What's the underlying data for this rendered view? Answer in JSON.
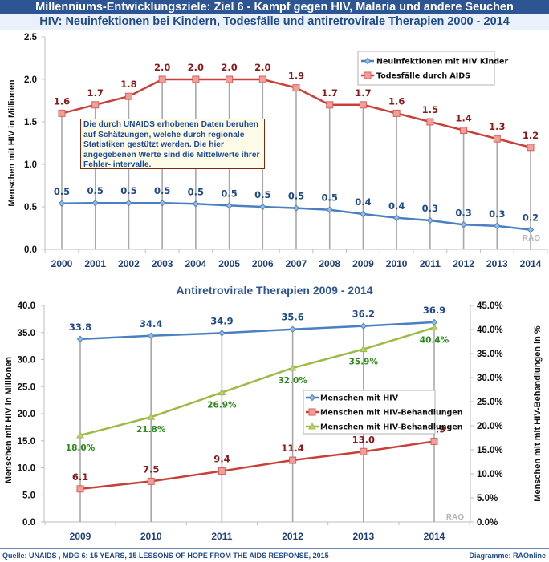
{
  "header": {
    "title": "Millenniums-Entwicklungsziele: Ziel 6 -  Kampf gegen HIV, Malaria und andere Seuchen",
    "subtitle": "HIV: Neuinfektionen bei Kindern, Todesfälle und antiretrovirale Therapien 2000 - 2014"
  },
  "note": "Die durch UNAIDS erhobenen Daten beruhen auf Schätzungen, welche durch regionale Statistiken gestützt werden. Die hier angegebenen Werte sind die Mittelwerte ihrer Fehler- intervalle.",
  "footer": {
    "source": "Quelle: UNAIDS , MDG 6: 15 YEARS, 15 LESSONS OF HOPE FROM THE AIDS RESPONSE, 2015",
    "credit": "Diagramme: RAOnline"
  },
  "colors": {
    "blue": "#4a7fc1",
    "red": "#c9403a",
    "green": "#9bbb45",
    "header_bg": "#2e5593"
  },
  "chart_data": [
    {
      "type": "line",
      "title": "",
      "xlabel": "",
      "ylabel": "Menschen mit HIV in Millionen",
      "ylim": [
        0,
        2.5
      ],
      "yticks": [
        "0.0",
        "0.5",
        "1.0",
        "1.5",
        "2.0",
        "2.5"
      ],
      "grid": "vertical drop lines",
      "legend": "top-right",
      "watermark": "RAO",
      "categories": [
        "2000",
        "2001",
        "2002",
        "2003",
        "2004",
        "2005",
        "2006",
        "2007",
        "2008",
        "2009",
        "2010",
        "2011",
        "2012",
        "2013",
        "2014"
      ],
      "series": [
        {
          "name": "Neuinfektionen mit HIV Kinder",
          "color": "#4a7fc1",
          "values": [
            0.54,
            0.545,
            0.545,
            0.545,
            0.535,
            0.515,
            0.5,
            0.485,
            0.465,
            0.415,
            0.37,
            0.34,
            0.29,
            0.275,
            0.23
          ],
          "labels": [
            "0.5",
            "0.5",
            "0.5",
            "0.5",
            "0.5",
            "0.5",
            "0.5",
            "0.5",
            "0.5",
            "0.4",
            "0.4",
            "0.3",
            "0.3",
            "0.3",
            "0.2"
          ]
        },
        {
          "name": "Todesfälle durch AIDS",
          "color": "#c9403a",
          "values": [
            1.6,
            1.7,
            1.8,
            2.0,
            2.0,
            2.0,
            2.0,
            1.9,
            1.7,
            1.7,
            1.6,
            1.5,
            1.4,
            1.3,
            1.2
          ],
          "labels": [
            "1.6",
            "1.7",
            "1.8",
            "2.0",
            "2.0",
            "2.0",
            "2.0",
            "1.9",
            "1.7",
            "1.7",
            "1.6",
            "1.5",
            "1.4",
            "1.3",
            "1.2"
          ]
        }
      ]
    },
    {
      "type": "line",
      "title": "Antiretrovirale Therapien 2009 - 2014",
      "xlabel": "",
      "ylabel": "Menschen mit HIV in Millionen",
      "y2label": "Menschen mit mit HIV-Behandlungen in %",
      "ylim": [
        0,
        40
      ],
      "y2lim": [
        0,
        45
      ],
      "yticks": [
        "0.0",
        "5.0",
        "10.0",
        "15.0",
        "20.0",
        "25.0",
        "30.0",
        "35.0",
        "40.0"
      ],
      "y2ticks": [
        "0.0%",
        "5.0%",
        "10.0%",
        "15.0%",
        "20.0%",
        "25.0%",
        "30.0%",
        "35.0%",
        "40.0%",
        "45.0%"
      ],
      "grid": "vertical drop lines",
      "legend": "center-right",
      "watermark": "RAO",
      "categories": [
        "2009",
        "2010",
        "2011",
        "2012",
        "2013",
        "2014"
      ],
      "series": [
        {
          "name": "Menschen mit HIV",
          "color": "#4a7fc1",
          "axis": "left",
          "values": [
            33.8,
            34.4,
            34.9,
            35.6,
            36.2,
            36.9
          ],
          "labels": [
            "33.8",
            "34.4",
            "34.9",
            "35.6",
            "36.2",
            "36.9"
          ]
        },
        {
          "name": "Menschen mit HIV-Behandlungen",
          "color": "#c9403a",
          "axis": "left",
          "values": [
            6.1,
            7.5,
            9.4,
            11.4,
            13.0,
            14.9
          ],
          "labels": [
            "6.1",
            "7.5",
            "9.4",
            "11.4",
            "13.0",
            "14.9"
          ]
        },
        {
          "name": "Menschen mit HIV-Behandlungen",
          "color": "#9bbb45",
          "axis": "right",
          "values": [
            18.0,
            21.8,
            26.9,
            32.0,
            35.9,
            40.4
          ],
          "labels": [
            "18.0%",
            "21.8%",
            "26.9%",
            "32.0%",
            "35.9%",
            "40.4%"
          ]
        }
      ]
    }
  ]
}
